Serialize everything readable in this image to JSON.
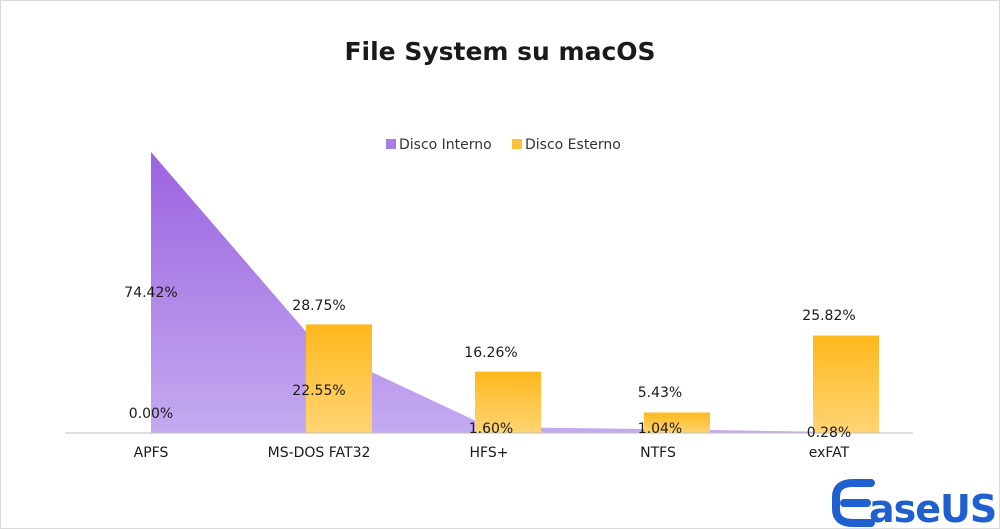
{
  "chart_data": {
    "type": "area+bar",
    "title": "File System su macOS",
    "categories": [
      "APFS",
      "MS-DOS FAT32",
      "HFS+",
      "NTFS",
      "exFAT"
    ],
    "series": [
      {
        "name": "Disco Interno",
        "kind": "area",
        "values": [
          74.42,
          22.55,
          1.6,
          1.04,
          0.28
        ],
        "labels": [
          "74.42%",
          "22.55%",
          "1.60%",
          "1.04%",
          "0.28%"
        ],
        "color": "#9f6fe0"
      },
      {
        "name": "Disco Esterno",
        "kind": "bar",
        "values": [
          0.0,
          28.75,
          16.26,
          5.43,
          25.82
        ],
        "labels": [
          "0.00%",
          "28.75%",
          "16.26%",
          "5.43%",
          "25.82%"
        ],
        "color": "#ffb81c"
      }
    ],
    "ylim": [
      0,
      75
    ],
    "unit": "%",
    "grid": false,
    "legend_position": "top"
  },
  "brand": {
    "logo_text": "aseUS",
    "logo_color": "#1f5fcf"
  }
}
